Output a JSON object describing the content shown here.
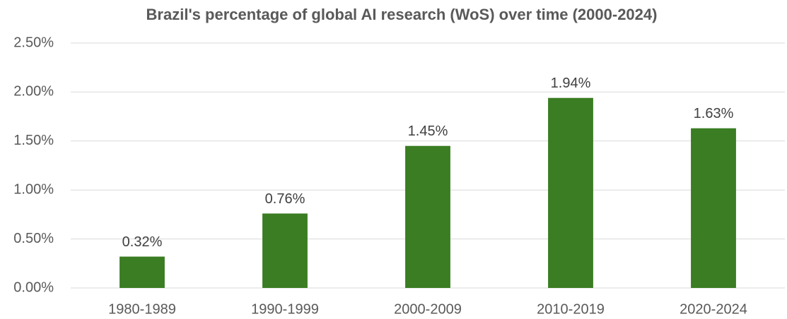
{
  "chart_data": {
    "type": "bar",
    "title": "Brazil's percentage of global AI research (WoS) over time (2000-2024)",
    "categories": [
      "1980-1989",
      "1990-1999",
      "2000-2009",
      "2010-2019",
      "2020-2024"
    ],
    "values": [
      0.32,
      0.76,
      1.45,
      1.94,
      1.63
    ],
    "value_labels": [
      "0.32%",
      "0.76%",
      "1.45%",
      "1.94%",
      "1.63%"
    ],
    "color": "#3a7d22",
    "ylim": [
      0,
      2.5
    ],
    "yticks": [
      {
        "value": 0,
        "label": "0.00%"
      },
      {
        "value": 0.5,
        "label": "0.50%"
      },
      {
        "value": 1,
        "label": "1.00%"
      },
      {
        "value": 1.5,
        "label": "1.50%"
      },
      {
        "value": 2,
        "label": "2.00%"
      },
      {
        "value": 2.5,
        "label": "2.50%"
      }
    ],
    "grid": true
  }
}
